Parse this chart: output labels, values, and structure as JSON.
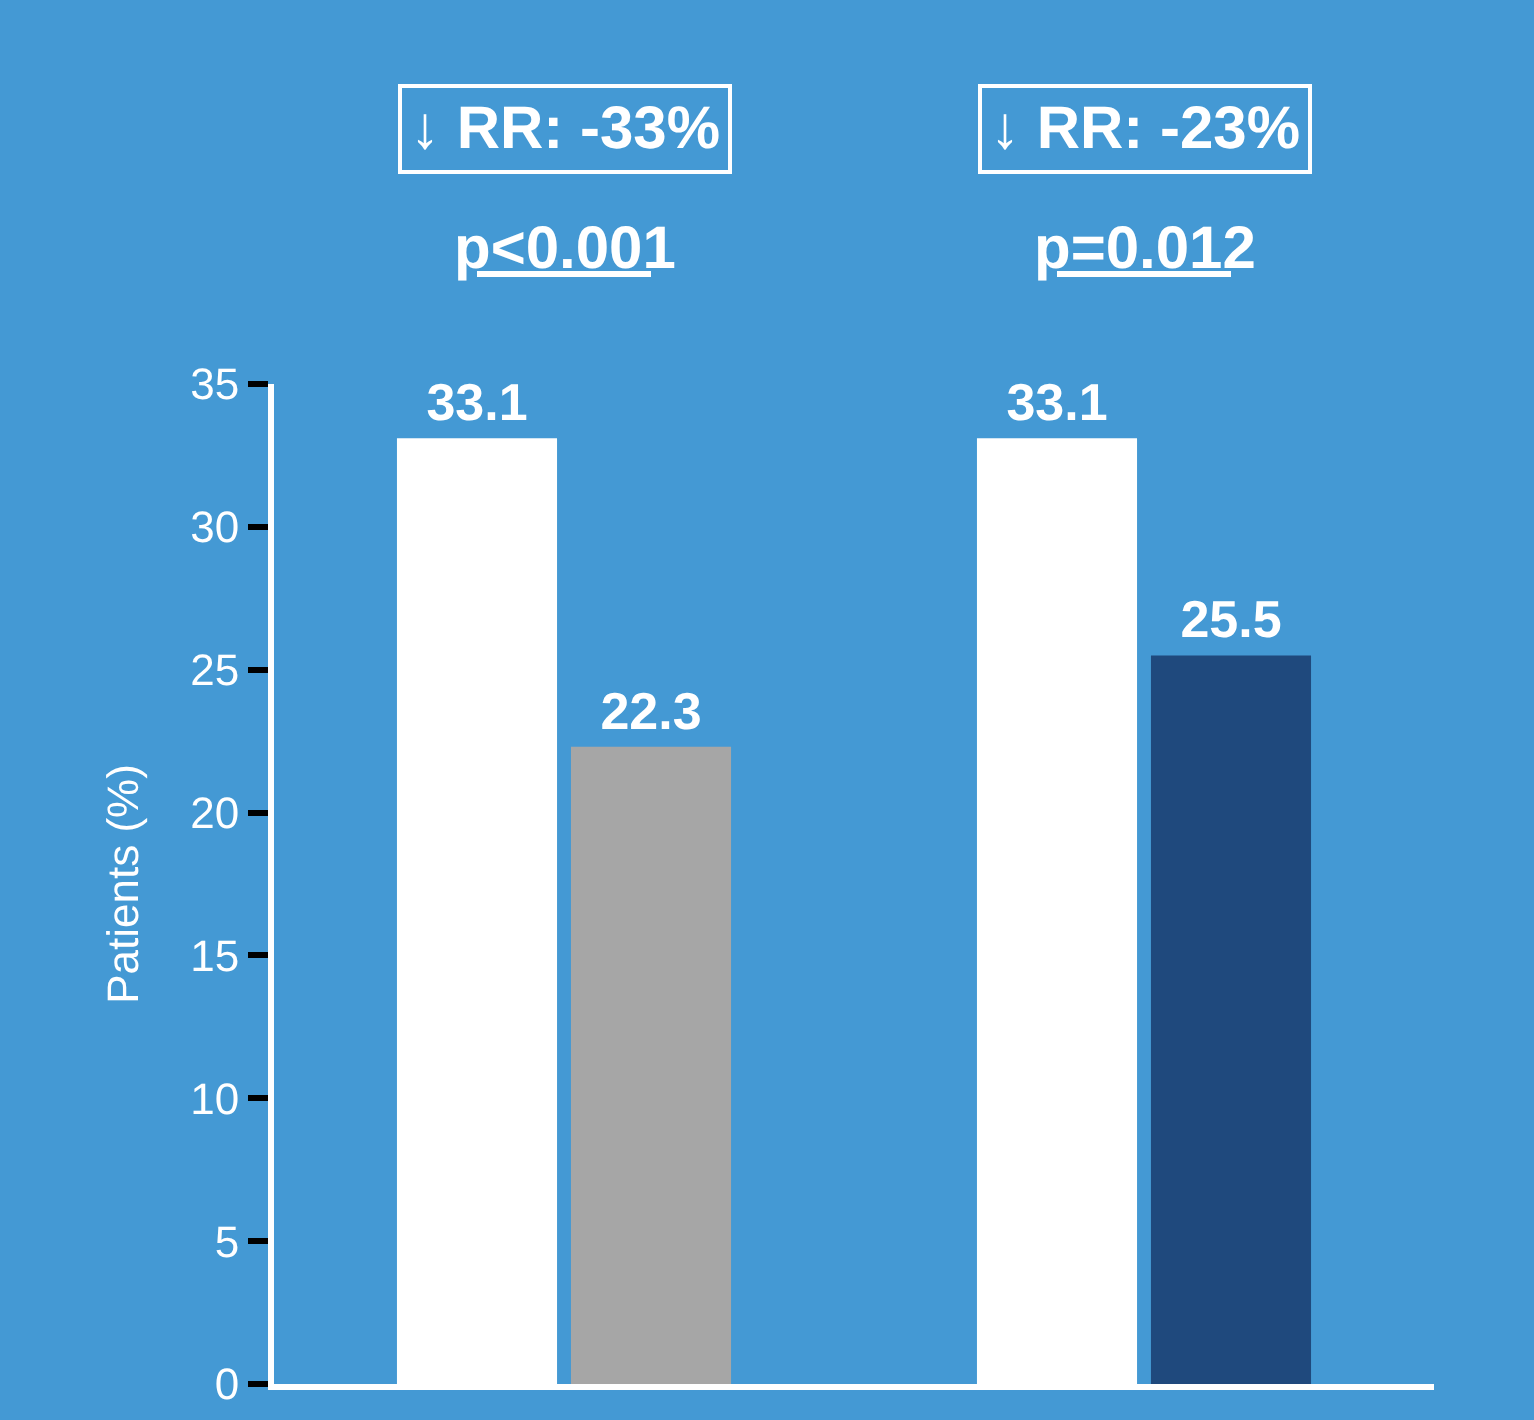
{
  "chart_data": {
    "type": "bar",
    "categories": [
      null,
      null
    ],
    "ylabel": "Patients (%)",
    "series": [
      {
        "color": "#ffffff",
        "values": [
          33.1,
          33.1
        ]
      },
      {
        "colors": [
          "#a6a6a6",
          "#1f497d"
        ],
        "values": [
          22.3,
          25.5
        ]
      }
    ],
    "data_labels": true,
    "ylim": [
      0,
      35
    ],
    "yticks": [
      0,
      5,
      10,
      15,
      20,
      25,
      30,
      35
    ],
    "grid": false,
    "annotations": [
      "↓ RR: -33%",
      "p<0.001",
      "↓ RR: -23%",
      "p=0.012"
    ]
  }
}
